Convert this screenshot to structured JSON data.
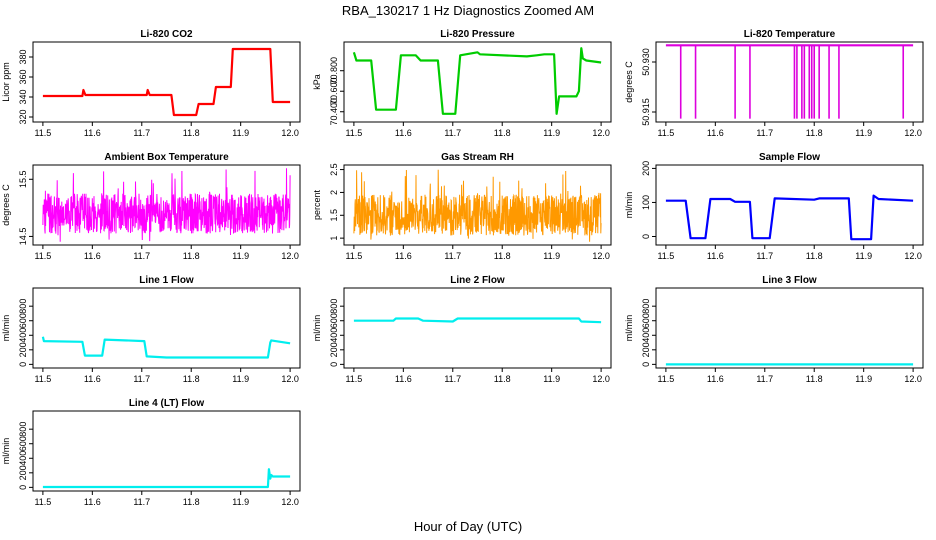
{
  "figure": {
    "title": "RBA_130217  1 Hz Diagnostics Zoomed AM",
    "xlabel": "Hour of Day (UTC)"
  },
  "chart_data": [
    {
      "id": "co2",
      "type": "line",
      "title": "Li-820 CO2",
      "ylabel": "Licor ppm",
      "color": "#ff0000",
      "xlim": [
        11.5,
        12.0
      ],
      "ylim": [
        315,
        395
      ],
      "yticks": [
        320,
        340,
        360,
        380
      ],
      "xticks": [
        11.5,
        11.6,
        11.7,
        11.8,
        11.9,
        12.0
      ],
      "segments": [
        {
          "x": [
            11.5,
            11.58,
            11.582,
            11.586,
            11.71,
            11.712,
            11.716,
            11.76,
            11.765,
            11.81,
            11.815,
            11.845,
            11.85,
            11.88,
            11.884,
            11.955,
            11.96,
            11.965,
            12.0
          ],
          "y": [
            341,
            341,
            347,
            342,
            342,
            347,
            342,
            342,
            322,
            322,
            333,
            333,
            350,
            350,
            388,
            388,
            388,
            335,
            335
          ]
        }
      ]
    },
    {
      "id": "pressure",
      "type": "line",
      "title": "Li-820 Pressure",
      "ylabel": "kPa",
      "color": "#00cc00",
      "xlim": [
        11.5,
        12.0
      ],
      "ylim": [
        70.3,
        71.08
      ],
      "yticks": [
        70.4,
        70.6,
        70.8
      ],
      "xticks": [
        11.5,
        11.6,
        11.7,
        11.8,
        11.9,
        12.0
      ],
      "segments": [
        {
          "x": [
            11.5,
            11.505,
            11.535,
            11.545,
            11.585,
            11.595,
            11.625,
            11.635,
            11.67,
            11.68,
            11.705,
            11.715,
            11.75,
            11.755,
            11.85,
            11.87,
            11.885,
            11.905,
            11.91,
            11.915,
            11.95,
            11.955,
            11.96,
            11.963,
            11.97,
            12.0
          ],
          "y": [
            70.98,
            70.9,
            70.9,
            70.42,
            70.42,
            70.95,
            70.95,
            70.9,
            70.9,
            70.38,
            70.38,
            70.95,
            70.98,
            70.96,
            70.94,
            70.95,
            70.96,
            70.96,
            70.38,
            70.55,
            70.55,
            70.6,
            71.02,
            70.92,
            70.9,
            70.88
          ]
        }
      ]
    },
    {
      "id": "temperature",
      "type": "line",
      "title": "Li-820 Temperature",
      "ylabel": "degrees C",
      "color": "#dd00dd",
      "xlim": [
        11.5,
        12.0
      ],
      "ylim": [
        50.912,
        50.936
      ],
      "yticks": [
        50.915,
        50.93
      ],
      "xticks": [
        11.5,
        11.6,
        11.7,
        11.8,
        11.9,
        12.0
      ],
      "segments": [
        {
          "x": [
            11.5,
            12.0
          ],
          "y": [
            50.935,
            50.935
          ]
        }
      ],
      "dropouts": [
        11.53,
        11.56,
        11.64,
        11.67,
        11.76,
        11.765,
        11.775,
        11.78,
        11.79,
        11.795,
        11.8,
        11.81,
        11.83,
        11.85,
        11.98
      ],
      "dropout_value": 50.913
    },
    {
      "id": "ambient",
      "type": "line",
      "title": "Ambient Box Temperature",
      "ylabel": "degrees C",
      "color": "#ff00ff",
      "xlim": [
        11.5,
        12.0
      ],
      "ylim": [
        14.35,
        15.75
      ],
      "yticks": [
        14.5,
        15.5
      ],
      "xticks": [
        11.5,
        11.6,
        11.7,
        11.8,
        11.9,
        12.0
      ],
      "noise": {
        "center": 14.9,
        "amplitude": 0.35,
        "spike_min": 14.4,
        "spike_max": 15.7
      }
    },
    {
      "id": "rh",
      "type": "line",
      "title": "Gas Stream RH",
      "ylabel": "percent",
      "color": "#ff9900",
      "xlim": [
        11.5,
        12.0
      ],
      "ylim": [
        0.85,
        2.6
      ],
      "yticks": [
        1.0,
        1.5,
        2.0,
        2.5
      ],
      "xticks": [
        11.5,
        11.6,
        11.7,
        11.8,
        11.9,
        12.0
      ],
      "noise": {
        "center": 1.5,
        "amplitude": 0.45,
        "spike_min": 0.9,
        "spike_max": 2.5
      }
    },
    {
      "id": "sample",
      "type": "line",
      "title": "Sample Flow",
      "ylabel": "ml/min",
      "color": "#0000ff",
      "xlim": [
        11.5,
        12.0
      ],
      "ylim": [
        -25,
        210
      ],
      "yticks": [
        0,
        100,
        200
      ],
      "xticks": [
        11.5,
        11.6,
        11.7,
        11.8,
        11.9,
        12.0
      ],
      "segments": [
        {
          "x": [
            11.5,
            11.54,
            11.55,
            11.58,
            11.59,
            11.63,
            11.64,
            11.67,
            11.675,
            11.71,
            11.72,
            11.8,
            11.81,
            11.87,
            11.875,
            11.915,
            11.92,
            11.93,
            12.0
          ],
          "y": [
            105,
            105,
            -5,
            -5,
            110,
            110,
            102,
            102,
            -5,
            -5,
            112,
            108,
            112,
            112,
            -8,
            -8,
            120,
            110,
            105
          ]
        }
      ]
    },
    {
      "id": "line1",
      "type": "line",
      "title": "Line 1 Flow",
      "ylabel": "ml/min",
      "color": "#00eeee",
      "xlim": [
        11.5,
        12.0
      ],
      "ylim": [
        -50,
        1050
      ],
      "yticks": [
        0,
        200,
        400,
        600,
        800
      ],
      "xticks": [
        11.5,
        11.6,
        11.7,
        11.8,
        11.9,
        12.0
      ],
      "segments": [
        {
          "x": [
            11.5,
            11.502,
            11.58,
            11.585,
            11.62,
            11.625,
            11.705,
            11.71,
            11.75,
            11.955,
            11.96,
            11.962,
            12.0
          ],
          "y": [
            380,
            320,
            310,
            120,
            120,
            340,
            320,
            110,
            95,
            95,
            300,
            330,
            290
          ]
        }
      ]
    },
    {
      "id": "line2",
      "type": "line",
      "title": "Line 2 Flow",
      "ylabel": "ml/min",
      "color": "#00eeee",
      "xlim": [
        11.5,
        12.0
      ],
      "ylim": [
        -50,
        1050
      ],
      "yticks": [
        0,
        200,
        400,
        600,
        800
      ],
      "xticks": [
        11.5,
        11.6,
        11.7,
        11.8,
        11.9,
        12.0
      ],
      "segments": [
        {
          "x": [
            11.5,
            11.58,
            11.585,
            11.63,
            11.64,
            11.7,
            11.71,
            11.955,
            11.96,
            12.0
          ],
          "y": [
            600,
            600,
            630,
            630,
            600,
            590,
            630,
            630,
            590,
            580
          ]
        }
      ]
    },
    {
      "id": "line3",
      "type": "line",
      "title": "Line 3 Flow",
      "ylabel": "ml/min",
      "color": "#00eeee",
      "xlim": [
        11.5,
        12.0
      ],
      "ylim": [
        -50,
        1050
      ],
      "yticks": [
        0,
        200,
        400,
        600,
        800
      ],
      "xticks": [
        11.5,
        11.6,
        11.7,
        11.8,
        11.9,
        12.0
      ],
      "segments": [
        {
          "x": [
            11.5,
            12.0
          ],
          "y": [
            0,
            0
          ]
        }
      ]
    },
    {
      "id": "line4",
      "type": "line",
      "title": "Line 4 (LT) Flow",
      "ylabel": "ml/min",
      "color": "#00eeee",
      "xlim": [
        11.5,
        12.0
      ],
      "ylim": [
        -50,
        1050
      ],
      "yticks": [
        0,
        200,
        400,
        600,
        800
      ],
      "xticks": [
        11.5,
        11.6,
        11.7,
        11.8,
        11.9,
        12.0
      ],
      "segments": [
        {
          "x": [
            11.5,
            11.955,
            11.957,
            11.96,
            11.962,
            11.965,
            12.0
          ],
          "y": [
            5,
            5,
            250,
            120,
            170,
            150,
            150
          ]
        }
      ]
    }
  ]
}
